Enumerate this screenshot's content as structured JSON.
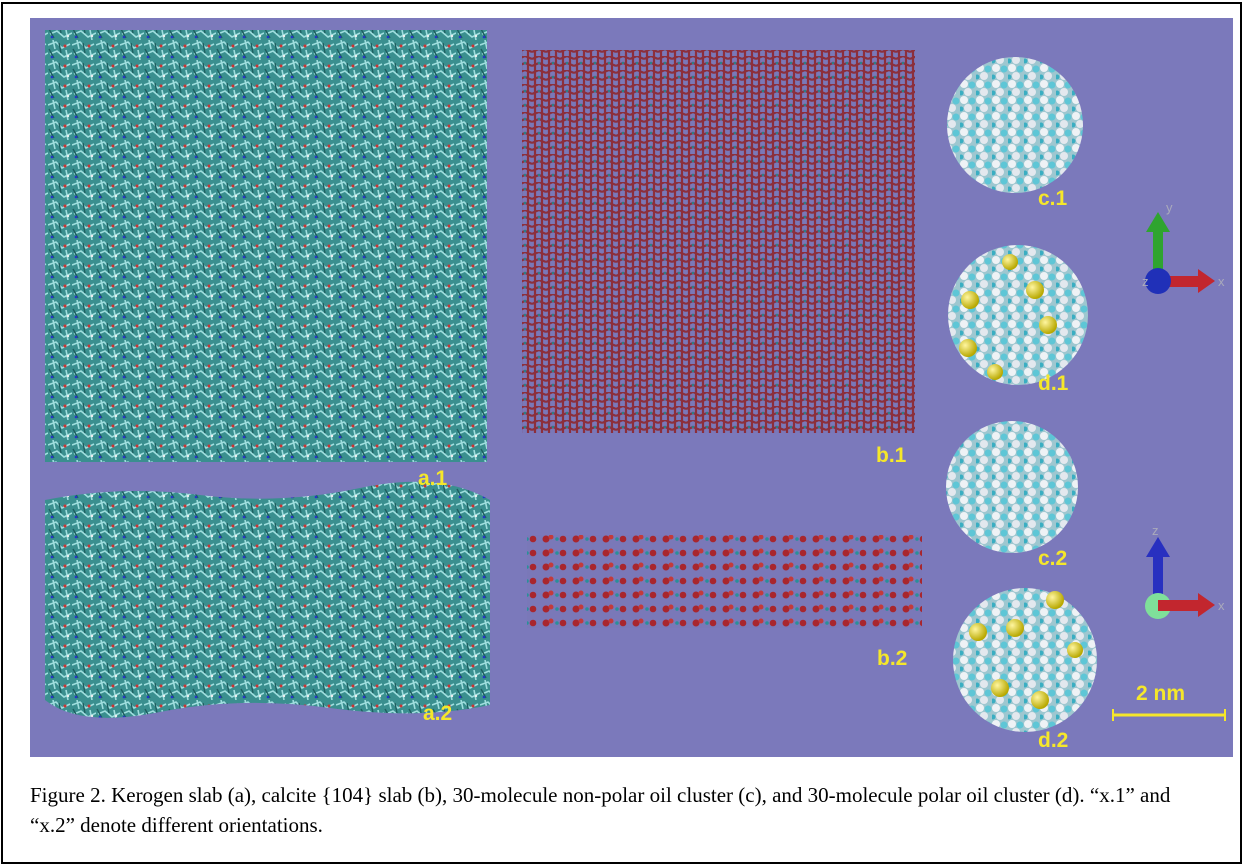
{
  "figure": {
    "panel_labels": [
      "a.1",
      "a.2",
      "b.1",
      "b.2",
      "c.1",
      "d.1",
      "c.2",
      "d.2"
    ],
    "axes_top": [
      "y",
      "z",
      "x"
    ],
    "axes_bottom": [
      "z",
      "x"
    ],
    "scale_bar": "2 nm"
  },
  "caption": "Figure 2. Kerogen slab (a), calcite {104} slab (b), 30-molecule non-polar oil cluster (c), and 30-molecule polar oil cluster (d). “x.1” and “x.2” denote different orientations."
}
